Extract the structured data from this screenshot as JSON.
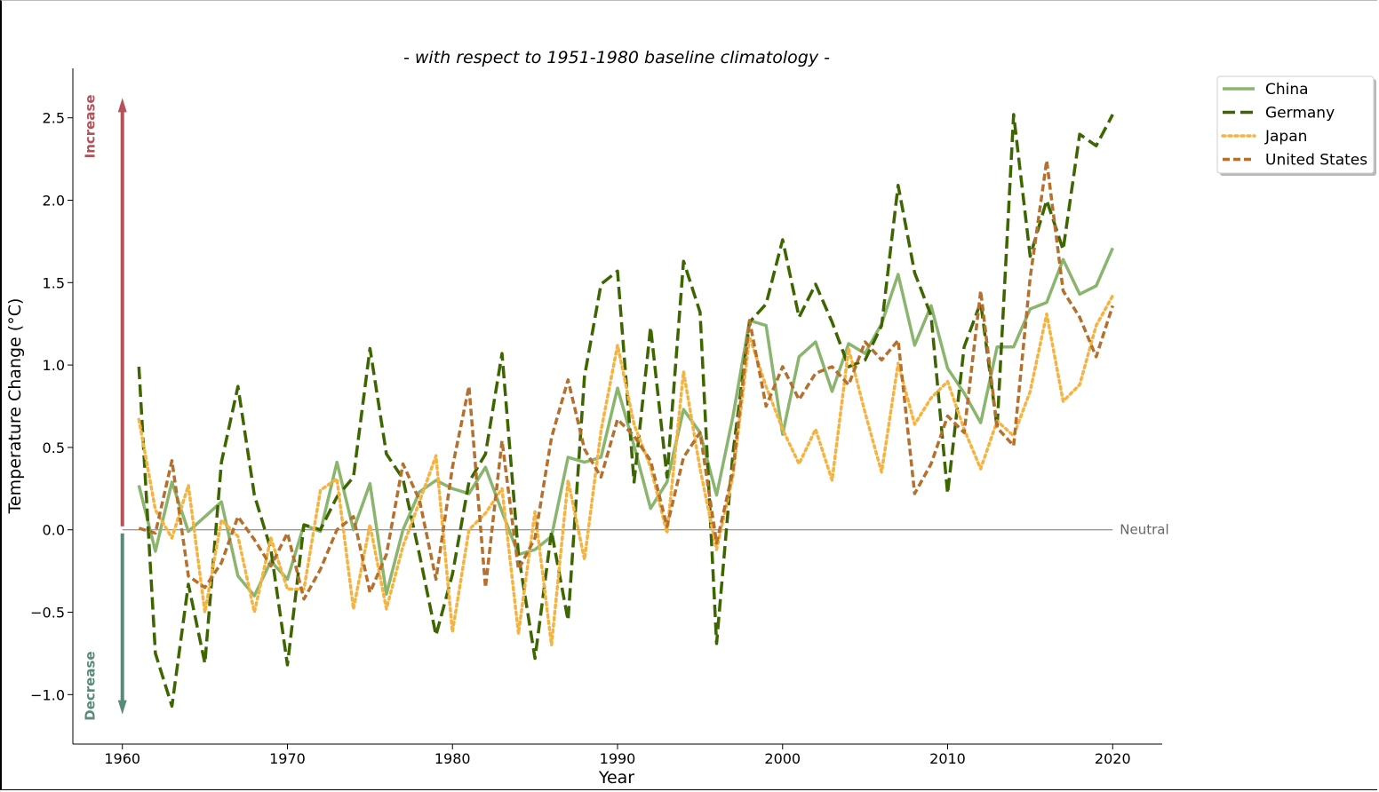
{
  "chart_data": {
    "type": "line",
    "title": "- with respect to 1951-1980 baseline climatology -",
    "xlabel": "Year",
    "ylabel": "Temperature Change (°C)",
    "xlim": [
      1957,
      2023
    ],
    "ylim": [
      -1.3,
      2.8
    ],
    "xticks": [
      1960,
      1970,
      1980,
      1990,
      2000,
      2010,
      2020
    ],
    "xtick_labels": [
      "1960",
      "1970",
      "1980",
      "1990",
      "2000",
      "2010",
      "2020"
    ],
    "yticks": [
      -1.0,
      -0.5,
      0.0,
      0.5,
      1.0,
      1.5,
      2.0,
      2.5
    ],
    "ytick_labels": [
      "−1.0",
      "−0.5",
      "0.0",
      "0.5",
      "1.0",
      "1.5",
      "2.0",
      "2.5"
    ],
    "legend_position": "outside top-right",
    "grid": false,
    "reference_line": {
      "y": 0.0,
      "label": "Neutral",
      "color": "#777777"
    },
    "arrows": {
      "increase": {
        "label": "Increase",
        "color": "#b5515a",
        "from": 0.0,
        "to": 2.62
      },
      "decrease": {
        "label": "Decrease",
        "color": "#5a8a78",
        "from": 0.0,
        "to": -1.12
      }
    },
    "x": [
      1961,
      1962,
      1963,
      1964,
      1965,
      1966,
      1967,
      1968,
      1969,
      1970,
      1971,
      1972,
      1973,
      1974,
      1975,
      1976,
      1977,
      1978,
      1979,
      1980,
      1981,
      1982,
      1983,
      1984,
      1985,
      1986,
      1987,
      1988,
      1989,
      1990,
      1991,
      1992,
      1993,
      1994,
      1995,
      1996,
      1997,
      1998,
      1999,
      2000,
      2001,
      2002,
      2003,
      2004,
      2005,
      2006,
      2007,
      2008,
      2009,
      2010,
      2011,
      2012,
      2013,
      2014,
      2015,
      2016,
      2017,
      2018,
      2019,
      2020
    ],
    "series": [
      {
        "name": "China",
        "color": "#8ab56e",
        "style": "solid",
        "values": [
          0.27,
          -0.13,
          0.29,
          -0.01,
          0.08,
          0.17,
          -0.28,
          -0.4,
          -0.19,
          -0.3,
          0.03,
          -0.01,
          0.41,
          0.0,
          0.28,
          -0.39,
          0.0,
          0.23,
          0.3,
          0.25,
          0.22,
          0.38,
          0.11,
          -0.15,
          -0.12,
          -0.04,
          0.44,
          0.41,
          0.44,
          0.86,
          0.51,
          0.13,
          0.29,
          0.73,
          0.59,
          0.21,
          0.69,
          1.27,
          1.24,
          0.58,
          1.05,
          1.14,
          0.84,
          1.13,
          1.07,
          1.25,
          1.55,
          1.12,
          1.36,
          0.98,
          0.83,
          0.65,
          1.11,
          1.11,
          1.34,
          1.38,
          1.64,
          1.43,
          1.48,
          1.71
        ]
      },
      {
        "name": "Germany",
        "color": "#3d6600",
        "style": "dashed",
        "values": [
          0.99,
          -0.75,
          -1.07,
          -0.33,
          -0.81,
          0.41,
          0.87,
          0.21,
          -0.12,
          -0.82,
          0.03,
          0.0,
          0.2,
          0.32,
          1.1,
          0.46,
          0.31,
          -0.15,
          -0.64,
          -0.27,
          0.29,
          0.46,
          1.07,
          -0.15,
          -0.78,
          -0.01,
          -0.55,
          0.93,
          1.49,
          1.57,
          0.29,
          1.23,
          0.32,
          1.63,
          1.32,
          -0.69,
          0.47,
          1.26,
          1.37,
          1.76,
          1.29,
          1.49,
          1.26,
          0.99,
          1.03,
          1.24,
          2.09,
          1.56,
          1.3,
          0.22,
          1.11,
          1.38,
          0.62,
          2.52,
          1.66,
          2.0,
          1.7,
          2.4,
          2.33,
          2.52
        ]
      },
      {
        "name": "Japan",
        "color": "#f5b342",
        "style": "dotted",
        "values": [
          0.67,
          0.12,
          -0.05,
          0.27,
          -0.5,
          0.06,
          -0.04,
          -0.5,
          -0.05,
          -0.36,
          -0.36,
          0.24,
          0.31,
          -0.48,
          0.03,
          -0.48,
          -0.1,
          0.17,
          0.45,
          -0.62,
          0.0,
          0.1,
          0.25,
          -0.63,
          0.11,
          -0.7,
          0.3,
          -0.18,
          0.6,
          1.12,
          0.64,
          0.38,
          -0.02,
          0.96,
          0.37,
          -0.12,
          0.33,
          1.17,
          0.87,
          0.61,
          0.4,
          0.61,
          0.3,
          1.1,
          0.71,
          0.35,
          1.01,
          0.64,
          0.8,
          0.9,
          0.61,
          0.37,
          0.66,
          0.57,
          0.84,
          1.31,
          0.78,
          0.88,
          1.24,
          1.42
        ]
      },
      {
        "name": "United States",
        "color": "#b5702e",
        "style": "shortdash",
        "values": [
          0.01,
          -0.02,
          0.42,
          -0.28,
          -0.35,
          -0.2,
          0.08,
          -0.06,
          -0.22,
          -0.02,
          -0.42,
          -0.24,
          0.0,
          0.08,
          -0.38,
          -0.15,
          0.4,
          0.18,
          -0.3,
          0.38,
          0.87,
          -0.35,
          0.54,
          -0.24,
          -0.05,
          0.56,
          0.91,
          0.49,
          0.32,
          0.67,
          0.57,
          0.42,
          0.02,
          0.44,
          0.59,
          -0.08,
          0.36,
          1.27,
          0.75,
          0.99,
          0.79,
          0.95,
          0.99,
          0.88,
          1.14,
          1.03,
          1.15,
          0.22,
          0.4,
          0.69,
          0.59,
          1.45,
          0.62,
          0.51,
          1.53,
          2.24,
          1.45,
          1.29,
          1.05,
          1.36
        ]
      }
    ]
  }
}
